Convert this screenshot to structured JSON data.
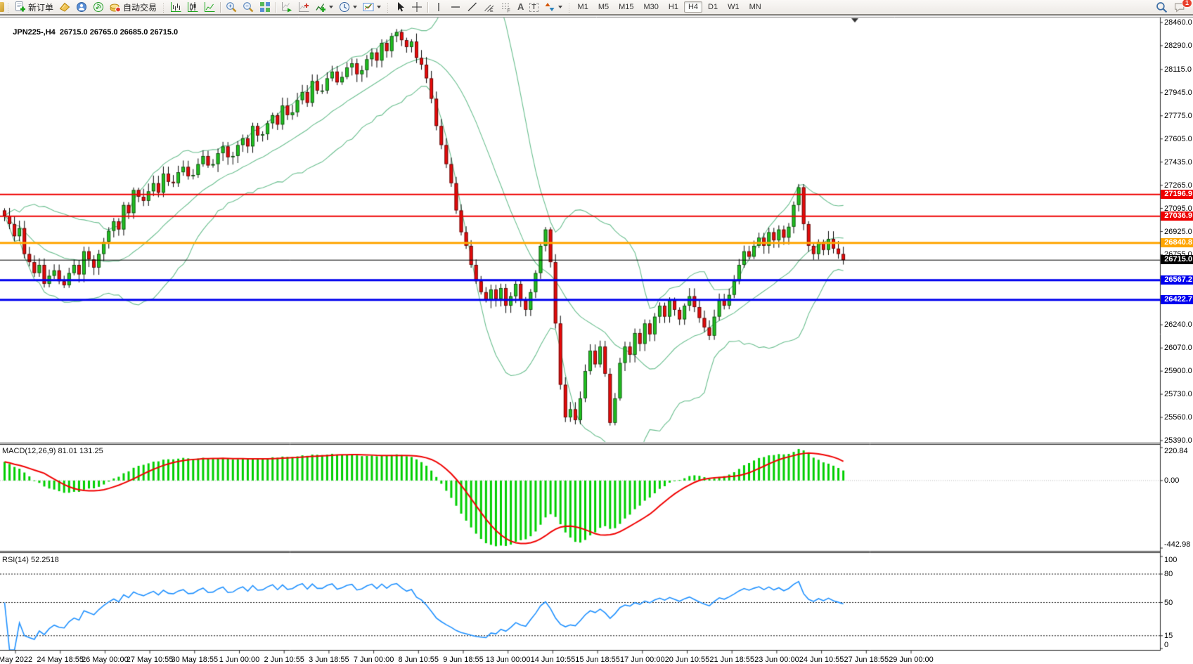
{
  "toolbar": {
    "new_order_label": "新订单",
    "auto_trading_label": "自动交易",
    "text_tool_letter": "A",
    "label_tool_letter": "T",
    "equidistant_letter": "E",
    "fibonacci_letter": "F",
    "timeframes": [
      "M1",
      "M5",
      "M15",
      "M30",
      "H1",
      "H4",
      "D1",
      "W1",
      "MN"
    ],
    "active_timeframe": "H4",
    "notification_count": "1"
  },
  "chart": {
    "header": {
      "symbol_tf": "JPN225-,H4",
      "open": "26715.0",
      "high": "26765.0",
      "low": "26685.0",
      "close": "26715.0"
    }
  },
  "chart_data": {
    "type": "candlestick",
    "symbol": "JPN225-",
    "timeframe": "H4",
    "price_axis": {
      "min": 25390,
      "max": 28460,
      "ticks": [
        {
          "label": "28460.0",
          "price": 28460
        },
        {
          "label": "28290.0",
          "price": 28290
        },
        {
          "label": "28115.0",
          "price": 28115
        },
        {
          "label": "27945.0",
          "price": 27945
        },
        {
          "label": "27775.0",
          "price": 27775
        },
        {
          "label": "27605.0",
          "price": 27605
        },
        {
          "label": "27435.0",
          "price": 27435
        },
        {
          "label": "27265.0",
          "price": 27265
        },
        {
          "label": "27095.0",
          "price": 27095
        },
        {
          "label": "26925.0",
          "price": 26925
        },
        {
          "label": "26755.0",
          "price": 26755
        },
        {
          "label": "26585.0",
          "price": 26585,
          "hidden": true
        },
        {
          "label": "26415.0",
          "price": 26415,
          "hidden": true
        },
        {
          "label": "26240.0",
          "price": 26240
        },
        {
          "label": "26070.0",
          "price": 26070
        },
        {
          "label": "25900.0",
          "price": 25900
        },
        {
          "label": "25730.0",
          "price": 25730
        },
        {
          "label": "25560.0",
          "price": 25560
        },
        {
          "label": "25390.0",
          "price": 25390
        }
      ]
    },
    "levels": [
      {
        "label": "27196.9",
        "price": 27196.9,
        "color": "#ee0000",
        "width": 2
      },
      {
        "label": "27036.9",
        "price": 27036.9,
        "color": "#ee0000",
        "width": 2
      },
      {
        "label": "26840.8",
        "price": 26840.8,
        "color": "#ffa500",
        "width": 3
      },
      {
        "label": "26715.0",
        "price": 26715.0,
        "color": "#000000",
        "width": 1
      },
      {
        "label": "26567.2",
        "price": 26567.2,
        "color": "#0000ee",
        "width": 3
      },
      {
        "label": "26422.7",
        "price": 26422.7,
        "color": "#0000ee",
        "width": 3
      }
    ],
    "candles_close": [
      27040,
      26980,
      26890,
      26950,
      26760,
      26700,
      26620,
      26680,
      26540,
      26600,
      26640,
      26560,
      26530,
      26620,
      26680,
      26610,
      26780,
      26720,
      26660,
      26760,
      26850,
      26930,
      27000,
      26940,
      27120,
      27060,
      27230,
      27180,
      27150,
      27220,
      27280,
      27210,
      27350,
      27290,
      27280,
      27360,
      27400,
      27330,
      27340,
      27420,
      27480,
      27410,
      27420,
      27500,
      27550,
      27470,
      27480,
      27560,
      27610,
      27550,
      27700,
      27630,
      27640,
      27720,
      27780,
      27710,
      27850,
      27780,
      27800,
      27890,
      27950,
      27870,
      28030,
      27960,
      27960,
      28050,
      28100,
      28020,
      28060,
      28130,
      28160,
      28080,
      28110,
      28190,
      28240,
      28180,
      28310,
      28250,
      28360,
      28390,
      28330,
      28280,
      28320,
      28200,
      28150,
      28050,
      27900,
      27700,
      27560,
      27420,
      27280,
      27080,
      26920,
      26820,
      26680,
      26560,
      26480,
      26420,
      26500,
      26430,
      26510,
      26380,
      26450,
      26540,
      26420,
      26350,
      26480,
      26620,
      26820,
      26940,
      26700,
      26250,
      25800,
      25560,
      25620,
      25540,
      25700,
      25900,
      26050,
      25950,
      26080,
      25880,
      25520,
      25700,
      25960,
      26080,
      26020,
      26180,
      26100,
      26250,
      26170,
      26300,
      26380,
      26300,
      26420,
      26350,
      26280,
      26380,
      26450,
      26370,
      26290,
      26220,
      26160,
      26300,
      26420,
      26380,
      26460,
      26560,
      26680,
      26780,
      26740,
      26820,
      26880,
      26820,
      26920,
      26860,
      26940,
      26880,
      26960,
      27120,
      27250,
      26980,
      26820,
      26760,
      26850,
      26790,
      26870,
      26800,
      26760,
      26715
    ],
    "candle_colors": {
      "up": "#1fc11f",
      "down": "#e80909",
      "wick": "#000000"
    },
    "time_labels": [
      "May 2022",
      "24 May 18:55",
      "26 May 00:00",
      "27 May 10:55",
      "30 May 18:55",
      "1 Jun 00:00",
      "2 Jun 10:55",
      "3 Jun 18:55",
      "7 Jun 00:00",
      "8 Jun 10:55",
      "9 Jun 18:55",
      "13 Jun 00:00",
      "14 Jun 10:55",
      "15 Jun 18:55",
      "17 Jun 00:00",
      "20 Jun 10:55",
      "21 Jun 18:55",
      "23 Jun 00:00",
      "24 Jun 10:55",
      "27 Jun 18:55",
      "29 Jun 00:00"
    ],
    "indicators": [
      {
        "name": "Bollinger Bands",
        "color": "#69be8e"
      },
      {
        "name": "MACD",
        "label": "MACD(12,26,9) 81.01 131.25",
        "main": 81.01,
        "signal": 131.25,
        "axis_labels": [
          "220.84",
          "0.00",
          "-442.98"
        ],
        "axis_values": [
          220.84,
          0,
          -442.98
        ],
        "range": [
          -442.98,
          220.84
        ],
        "histogram_color": "#00cf00",
        "signal_color": "#f00000"
      },
      {
        "name": "RSI",
        "label": "RSI(14) 52.2518",
        "value": 52.2518,
        "axis_labels": [
          "100",
          "80",
          "50",
          "15",
          "0"
        ],
        "axis_values": [
          100,
          80,
          50,
          15,
          0
        ],
        "levels": [
          80,
          50,
          15
        ],
        "range": [
          0,
          100
        ],
        "color": "#1e90ff"
      }
    ]
  }
}
